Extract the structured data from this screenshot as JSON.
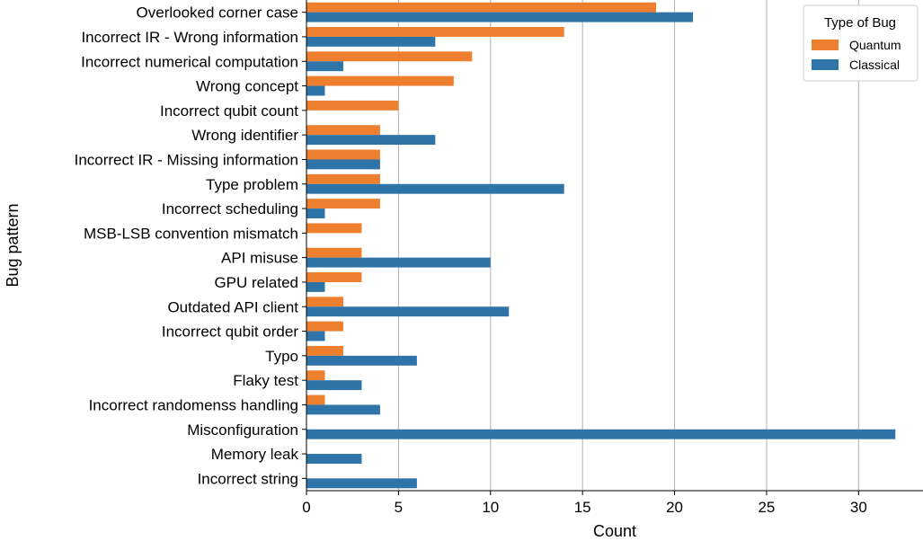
{
  "chart_data": {
    "type": "bar",
    "orientation": "horizontal",
    "title": "",
    "xlabel": "Count",
    "ylabel": "Bug pattern",
    "xlim": [
      0,
      33.5
    ],
    "xticks": [
      0,
      5,
      10,
      15,
      20,
      25,
      30
    ],
    "grid": "vertical",
    "legend": {
      "title": "Type of Bug",
      "position": "top-right"
    },
    "categories": [
      "Overlooked corner case",
      "Incorrect IR - Wrong information",
      "Incorrect numerical computation",
      "Wrong concept",
      "Incorrect qubit count",
      "Wrong identifier",
      "Incorrect IR - Missing information",
      "Type problem",
      "Incorrect scheduling",
      "MSB-LSB convention mismatch",
      "API misuse",
      "GPU related",
      "Outdated API client",
      "Incorrect qubit order",
      "Typo",
      "Flaky test",
      "Incorrect randomenss handling",
      "Misconfiguration",
      "Memory leak",
      "Incorrect string"
    ],
    "series": [
      {
        "name": "Quantum",
        "color": "#ee7f2e",
        "values": [
          19,
          14,
          9,
          8,
          5,
          4,
          4,
          4,
          4,
          3,
          3,
          3,
          2,
          2,
          2,
          1,
          1,
          0,
          0,
          0
        ]
      },
      {
        "name": "Classical",
        "color": "#2e74a8",
        "values": [
          21,
          7,
          2,
          1,
          0,
          7,
          4,
          14,
          1,
          0,
          10,
          1,
          11,
          1,
          6,
          3,
          4,
          32,
          3,
          6
        ]
      }
    ]
  }
}
